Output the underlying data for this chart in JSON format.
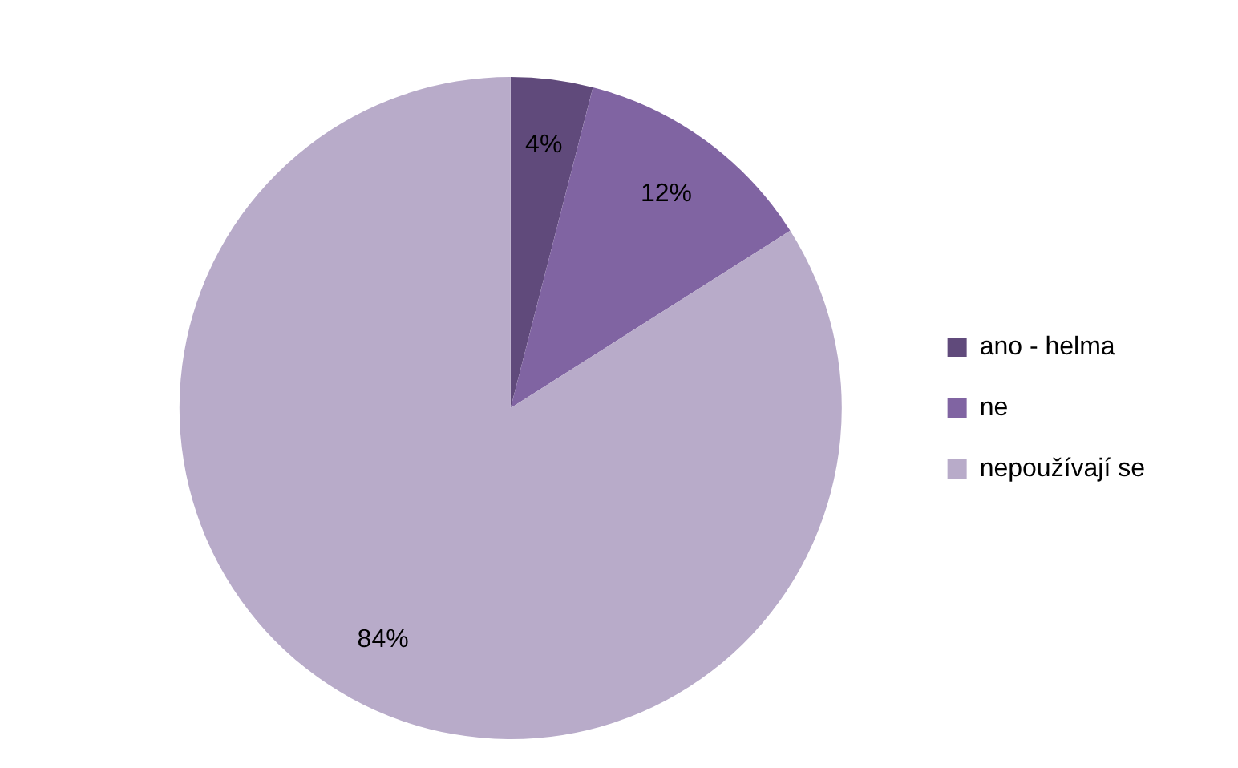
{
  "chart_data": {
    "type": "pie",
    "categories": [
      "ano - helma",
      "ne",
      "nepoužívají se"
    ],
    "values": [
      4,
      12,
      84
    ],
    "colors": [
      "#604a7b",
      "#8064a2",
      "#b8abc9"
    ],
    "value_labels": [
      "4%",
      "12%",
      "84%"
    ],
    "legend": "right"
  }
}
